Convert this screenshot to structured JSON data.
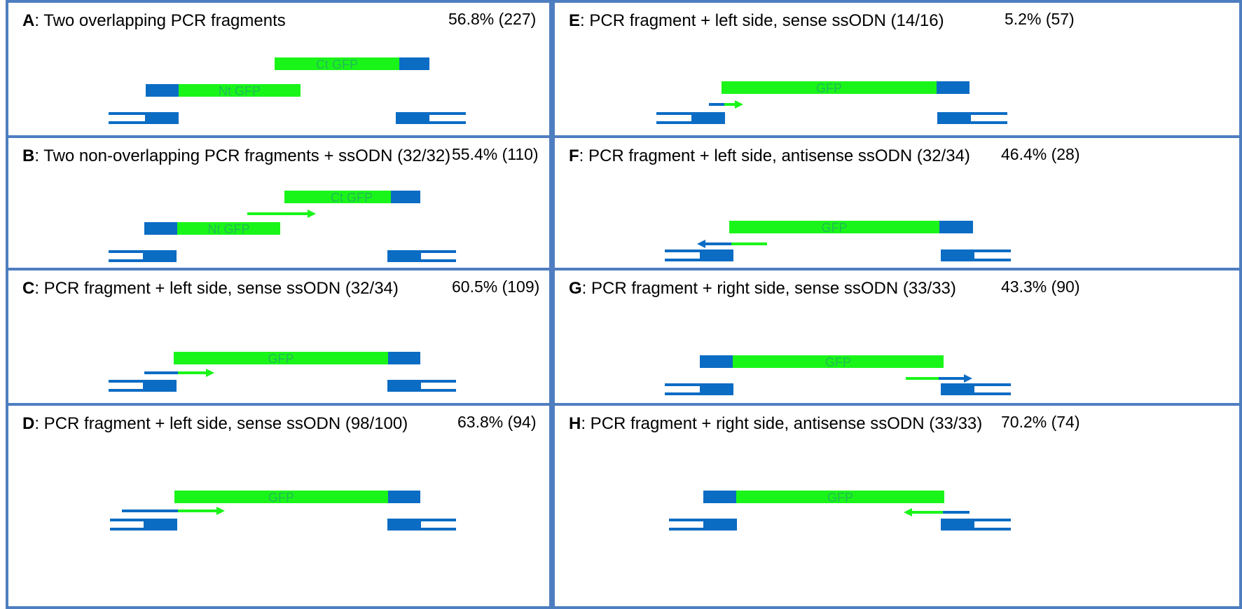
{
  "colors": {
    "border": "#4f7ec0",
    "homology_arm": "#0b6cc4",
    "gfp": "#1af519",
    "bar_label": "#22bb55"
  },
  "panels": [
    {
      "letter": "A",
      "title": ": Two overlapping PCR fragments",
      "stat": "56.8% (227)",
      "labels": [
        "Ct GFP",
        "Nt GFP"
      ]
    },
    {
      "letter": "B",
      "title": ": Two non-overlapping PCR fragments + ssODN (32/32)",
      "stat": "55.4% (110)",
      "labels": [
        "Ct GFP",
        "Nt GFP"
      ]
    },
    {
      "letter": "C",
      "title": ": PCR fragment + left side, sense ssODN (32/34)",
      "stat": "60.5% (109)",
      "labels": [
        "GFP"
      ]
    },
    {
      "letter": "D",
      "title": ": PCR fragment + left side, sense ssODN  (98/100)",
      "stat": "63.8% (94)",
      "labels": [
        "GFP"
      ]
    },
    {
      "letter": "E",
      "title": ": PCR fragment + left side, sense ssODN  (14/16)",
      "stat": "5.2% (57)",
      "labels": [
        "GFP"
      ]
    },
    {
      "letter": "F",
      "title": ": PCR fragment + left side, antisense ssODN (32/34)",
      "stat": "46.4% (28)",
      "labels": [
        "GFP"
      ]
    },
    {
      "letter": "G",
      "title": ": PCR fragment + right side, sense ssODN (33/33)",
      "stat": "43.3% (90)",
      "labels": [
        "GFP"
      ]
    },
    {
      "letter": "H",
      "title": ": PCR fragment + right side, antisense ssODN (33/33)",
      "stat": "70.2% (74)",
      "labels": [
        "GFP"
      ]
    }
  ]
}
